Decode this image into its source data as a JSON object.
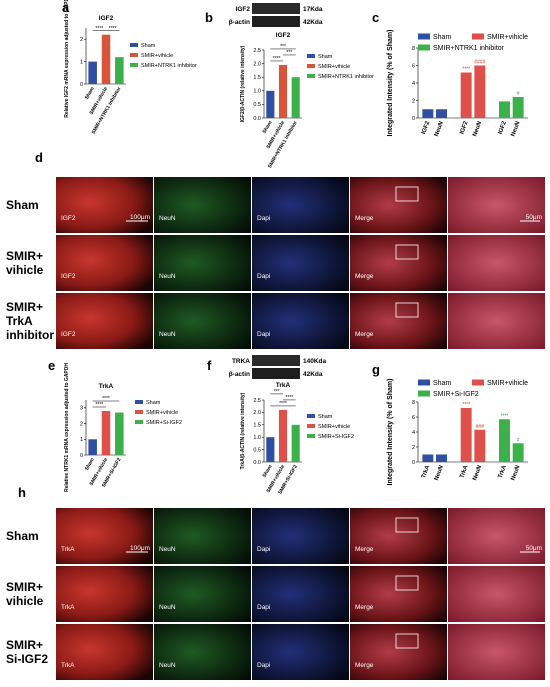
{
  "panel_letters": [
    "a",
    "b",
    "c",
    "d",
    "e",
    "f",
    "g",
    "h"
  ],
  "chart_data": [
    {
      "type": "bar",
      "title": "IGF2",
      "ylabel": "Relative IGF2 mRNA expression adjusted to GAPDH",
      "categories": [
        "Sham",
        "SMIR+vihicle",
        "SMIR+NTRK1 inhibitor"
      ],
      "values": [
        1,
        2.2,
        1.2
      ],
      "colors": [
        "#2f4fa2",
        "#d9553a",
        "#3cb04a"
      ],
      "ylim": [
        0,
        2.5
      ],
      "yticks": [
        0,
        1,
        2
      ],
      "annotations": [
        "****",
        "****"
      ]
    },
    {
      "type": "bar",
      "title": "IGF2",
      "ylabel": "IGF2/β-ACTIN (relative intensity)",
      "blot_labels": [
        "IGF2",
        "17Kda",
        "β-actin",
        "42Kda"
      ],
      "categories": [
        "Sham",
        "SMIR+vihicle",
        "SMIR+NTRK1 inhibitor"
      ],
      "values": [
        1,
        1.95,
        1.5
      ],
      "colors": [
        "#2f4fa2",
        "#d9553a",
        "#3cb04a"
      ],
      "ylim": [
        0,
        2.5
      ],
      "yticks": [
        {
          "value": 0,
          "label": "0.0"
        },
        {
          "value": 0.5,
          "label": "0.5"
        },
        {
          "value": 1,
          "label": "1.0"
        },
        {
          "value": 1.5,
          "label": "1.5"
        },
        {
          "value": 2,
          "label": "2.0"
        },
        {
          "value": 2.5,
          "label": "2.5"
        }
      ],
      "annotations": [
        "***",
        "****",
        "***"
      ]
    },
    {
      "type": "bar",
      "ylabel": "Integrated Intensity (% of Sham)",
      "categories": [
        "IGF2",
        "NeuN"
      ],
      "series": [
        {
          "name": "Sham",
          "color": "#2f4fa2",
          "values": [
            1,
            1
          ]
        },
        {
          "name": "SMIR+vihicle",
          "color": "#e0504a",
          "values": [
            5.2,
            6
          ]
        },
        {
          "name": "SMIR+NTRK1 inhibitor",
          "color": "#3cb04a",
          "values": [
            1.9,
            2.4
          ]
        }
      ],
      "ylim": [
        0,
        8
      ],
      "yticks": [
        0,
        2,
        4,
        6,
        8
      ],
      "annotations": [
        "****",
        "####",
        "#"
      ]
    },
    {
      "type": "bar",
      "title": "TrkA",
      "ylabel": "Relative NTRK1 mRNA expression adjusted to GAPDH",
      "categories": [
        "Sham",
        "SMIR+vihicle",
        "SMIR+Si-IGF2"
      ],
      "values": [
        1,
        2.8,
        2.7
      ],
      "colors": [
        "#2f4fa2",
        "#e0504a",
        "#3cb04a"
      ],
      "ylim": [
        0,
        3.5
      ],
      "yticks": [
        0,
        1,
        2,
        3
      ],
      "annotations": [
        "****",
        "****"
      ]
    },
    {
      "type": "bar",
      "title": "TrkA",
      "ylabel": "TrkA/β-ACTIN (relative intensity)",
      "blot_labels": [
        "TRKA",
        "140Kda",
        "β-actin",
        "42Kda"
      ],
      "categories": [
        "Sham",
        "SMIR+vihicle",
        "SMIR+Si-IGF2"
      ],
      "values": [
        1,
        2.1,
        1.5
      ],
      "colors": [
        "#2f4fa2",
        "#e0504a",
        "#3cb04a"
      ],
      "ylim": [
        0,
        2.5
      ],
      "yticks": [
        {
          "value": 0,
          "label": "0.0"
        },
        {
          "value": 0.5,
          "label": "0.5"
        },
        {
          "value": 1,
          "label": "1.0"
        },
        {
          "value": 1.5,
          "label": "1.5"
        },
        {
          "value": 2,
          "label": "2.0"
        },
        {
          "value": 2.5,
          "label": "2.5"
        }
      ],
      "annotations": [
        "***",
        "****",
        "****"
      ]
    },
    {
      "type": "bar",
      "ylabel": "Integrated Intensity (% of Sham)",
      "categories": [
        "TrkA",
        "NeuN"
      ],
      "series": [
        {
          "name": "Sham",
          "color": "#2f4fa2",
          "values": [
            1,
            1
          ]
        },
        {
          "name": "SMIR+vihicle",
          "color": "#e0504a",
          "values": [
            7.2,
            4.3
          ]
        },
        {
          "name": "SMIR+Si-IGF2",
          "color": "#3cb04a",
          "values": [
            5.7,
            2.5
          ]
        }
      ],
      "ylim": [
        0,
        8
      ],
      "yticks": [
        0,
        2,
        4,
        6,
        8
      ],
      "annotations": [
        "****",
        "###",
        "****",
        "#"
      ]
    }
  ],
  "panel_d": {
    "rows": [
      [
        "Sham"
      ],
      [
        "SMIR+",
        "vihicle"
      ],
      [
        "SMIR+",
        "TrkA",
        "inhibitor"
      ]
    ],
    "columns": [
      "IGF2",
      "NeuN",
      "Dapi",
      "Merge"
    ],
    "scale_bars": [
      "100μm",
      "50μm"
    ]
  },
  "panel_h": {
    "rows": [
      [
        "Sham"
      ],
      [
        "SMIR+",
        "vihicle"
      ],
      [
        "SMIR+",
        "Si-IGF2"
      ]
    ],
    "columns": [
      "TrkA",
      "NeuN",
      "Dapi",
      "Merge"
    ],
    "scale_bars": [
      "100μm",
      "50μm"
    ]
  }
}
